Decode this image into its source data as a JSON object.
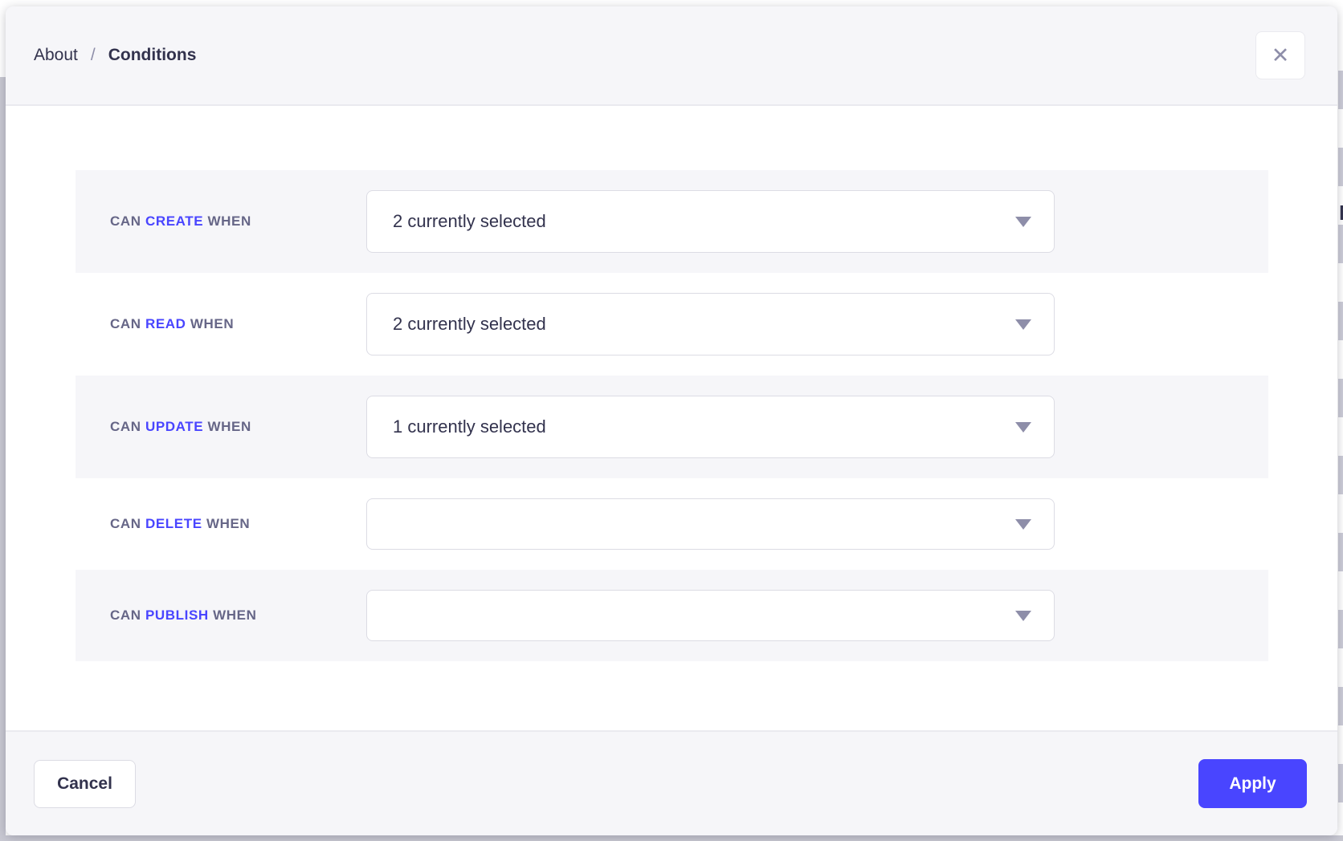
{
  "header": {
    "breadcrumb": {
      "parent": "About",
      "separator": "/",
      "current": "Conditions"
    },
    "close_icon": "✕"
  },
  "main": {
    "rows": [
      {
        "prefix": "CAN",
        "action": "CREATE",
        "suffix": "WHEN",
        "value": "2 currently selected"
      },
      {
        "prefix": "CAN",
        "action": "READ",
        "suffix": "WHEN",
        "value": "2 currently selected"
      },
      {
        "prefix": "CAN",
        "action": "UPDATE",
        "suffix": "WHEN",
        "value": "1 currently selected"
      },
      {
        "prefix": "CAN",
        "action": "DELETE",
        "suffix": "WHEN",
        "value": ""
      },
      {
        "prefix": "CAN",
        "action": "PUBLISH",
        "suffix": "WHEN",
        "value": ""
      }
    ]
  },
  "footer": {
    "cancel_label": "Cancel",
    "apply_label": "Apply"
  },
  "background_page": {
    "partial_text": "N"
  },
  "colors": {
    "accent": "#4945ff",
    "row_alt_background": "#f6f6f9",
    "text_dark": "#32324d",
    "label_gray": "#666687",
    "caret_gray": "#8e8ea9",
    "border_light": "#eaeaef",
    "apply_button": "#4945ff"
  }
}
